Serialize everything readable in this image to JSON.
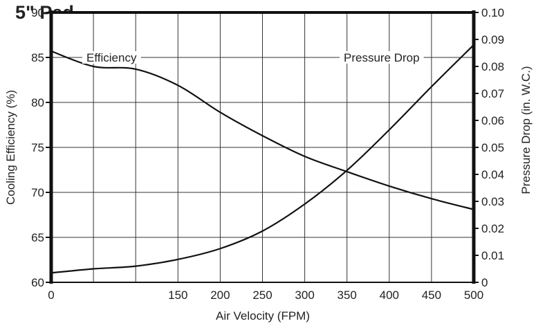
{
  "chart_data": {
    "type": "line",
    "title": "5\" Pad",
    "xlabel": "Air Velocity (FPM)",
    "ylabel_left": "Cooling Efficiency (%)",
    "ylabel_right": "Pressure Drop (in. W.C.)",
    "xlim": [
      0,
      500
    ],
    "ylim_left": [
      60,
      90
    ],
    "ylim_right": [
      0,
      0.1
    ],
    "grid": true,
    "x_ticks": [
      "0",
      "150",
      "200",
      "250",
      "300",
      "350",
      "400",
      "450",
      "500"
    ],
    "y_left_ticks": [
      "60",
      "65",
      "70",
      "75",
      "80",
      "85",
      "90"
    ],
    "y_right_ticks": [
      "0",
      "0.01",
      "0.02",
      "0.03",
      "0.04",
      "0.05",
      "0.06",
      "0.07",
      "0.08",
      "0.09",
      "0.10"
    ],
    "series": [
      {
        "name": "Efficiency",
        "axis": "left",
        "x": [
          0,
          50,
          100,
          150,
          200,
          250,
          300,
          350,
          400,
          450,
          500
        ],
        "y": [
          85.7,
          84.0,
          83.7,
          81.9,
          78.9,
          76.3,
          74.0,
          72.3,
          70.7,
          69.3,
          68.1
        ]
      },
      {
        "name": "Pressure Drop",
        "axis": "right",
        "x": [
          0,
          50,
          100,
          150,
          200,
          250,
          300,
          350,
          400,
          450,
          500
        ],
        "y": [
          0.0035,
          0.005,
          0.006,
          0.0085,
          0.0125,
          0.019,
          0.029,
          0.0415,
          0.0565,
          0.0725,
          0.088
        ]
      }
    ]
  }
}
